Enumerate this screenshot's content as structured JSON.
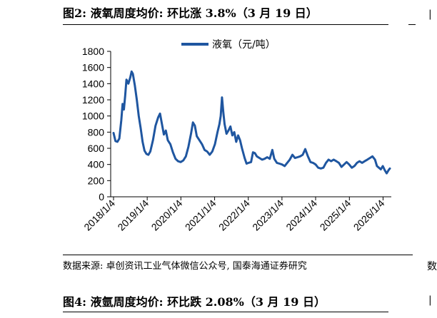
{
  "figure_top": {
    "title": "图2:  液氧周度均价:  环比涨 3.8%（3 月 19 日）"
  },
  "source_note": "数据来源:  卓创资讯工业气体微信公众号,  国泰海通证券研究",
  "figure_bottom": {
    "title": "图4:  液氩周度均价:  环比跌 2.08%（3 月 19 日）"
  },
  "right_edge_marks": {
    "upper": "|",
    "middle": "数",
    "lower": "|"
  },
  "colors": {
    "series": "#1f56a0",
    "axis": "#000000"
  },
  "chart_data": {
    "type": "line",
    "title": "",
    "xlabel": "",
    "ylabel": "",
    "ylim": [
      0,
      1800
    ],
    "yticks": [
      0,
      200,
      400,
      600,
      800,
      1000,
      1200,
      1400,
      1600,
      1800
    ],
    "x_ticks": [
      "2018/1/4",
      "2019/1/4",
      "2020/1/4",
      "2021/1/4",
      "2022/1/4",
      "2023/1/4",
      "2024/1/4",
      "2025/1/4",
      "2026/1/4"
    ],
    "legend": {
      "position": "top-center"
    },
    "grid": false,
    "series": [
      {
        "name": "液氧（元/吨）",
        "points": [
          [
            "2018/1/4",
            790
          ],
          [
            "2018/1/25",
            690
          ],
          [
            "2018/2/15",
            680
          ],
          [
            "2018/3/8",
            720
          ],
          [
            "2018/3/29",
            950
          ],
          [
            "2018/4/12",
            1150
          ],
          [
            "2018/4/26",
            1080
          ],
          [
            "2018/5/10",
            1250
          ],
          [
            "2018/5/24",
            1450
          ],
          [
            "2018/6/14",
            1400
          ],
          [
            "2018/7/5",
            1480
          ],
          [
            "2018/7/19",
            1550
          ],
          [
            "2018/8/2",
            1520
          ],
          [
            "2018/8/23",
            1380
          ],
          [
            "2018/9/13",
            1200
          ],
          [
            "2018/10/4",
            1000
          ],
          [
            "2018/10/25",
            850
          ],
          [
            "2018/11/15",
            680
          ],
          [
            "2018/12/6",
            570
          ],
          [
            "2018/12/27",
            530
          ],
          [
            "2019/1/17",
            520
          ],
          [
            "2019/2/7",
            560
          ],
          [
            "2019/3/7",
            700
          ],
          [
            "2019/4/4",
            880
          ],
          [
            "2019/5/2",
            980
          ],
          [
            "2019/5/23",
            1030
          ],
          [
            "2019/6/13",
            900
          ],
          [
            "2019/7/4",
            770
          ],
          [
            "2019/7/25",
            820
          ],
          [
            "2019/8/15",
            700
          ],
          [
            "2019/9/12",
            650
          ],
          [
            "2019/10/10",
            550
          ],
          [
            "2019/11/7",
            470
          ],
          [
            "2019/12/5",
            440
          ],
          [
            "2020/1/2",
            430
          ],
          [
            "2020/1/30",
            450
          ],
          [
            "2020/2/27",
            500
          ],
          [
            "2020/3/26",
            620
          ],
          [
            "2020/4/23",
            780
          ],
          [
            "2020/5/14",
            920
          ],
          [
            "2020/6/4",
            880
          ],
          [
            "2020/6/25",
            750
          ],
          [
            "2020/7/23",
            700
          ],
          [
            "2020/8/20",
            650
          ],
          [
            "2020/9/17",
            580
          ],
          [
            "2020/10/15",
            560
          ],
          [
            "2020/11/12",
            520
          ],
          [
            "2020/12/10",
            560
          ],
          [
            "2021/1/7",
            650
          ],
          [
            "2021/2/4",
            800
          ],
          [
            "2021/2/25",
            900
          ],
          [
            "2021/3/11",
            1000
          ],
          [
            "2021/3/25",
            1230
          ],
          [
            "2021/4/8",
            1050
          ],
          [
            "2021/4/22",
            900
          ],
          [
            "2021/5/13",
            780
          ],
          [
            "2021/6/3",
            820
          ],
          [
            "2021/6/24",
            870
          ],
          [
            "2021/7/15",
            760
          ],
          [
            "2021/8/5",
            800
          ],
          [
            "2021/8/26",
            680
          ],
          [
            "2021/9/16",
            760
          ],
          [
            "2021/10/7",
            700
          ],
          [
            "2021/10/28",
            600
          ],
          [
            "2021/11/25",
            480
          ],
          [
            "2021/12/16",
            410
          ],
          [
            "2022/1/6",
            420
          ],
          [
            "2022/2/3",
            430
          ],
          [
            "2022/2/24",
            550
          ],
          [
            "2022/3/17",
            540
          ],
          [
            "2022/4/7",
            500
          ],
          [
            "2022/5/5",
            480
          ],
          [
            "2022/6/2",
            460
          ],
          [
            "2022/6/30",
            470
          ],
          [
            "2022/7/28",
            490
          ],
          [
            "2022/8/25",
            470
          ],
          [
            "2022/9/22",
            580
          ],
          [
            "2022/10/13",
            470
          ],
          [
            "2022/11/10",
            420
          ],
          [
            "2022/12/8",
            410
          ],
          [
            "2023/1/5",
            400
          ],
          [
            "2023/2/2",
            380
          ],
          [
            "2023/3/2",
            420
          ],
          [
            "2023/3/30",
            460
          ],
          [
            "2023/4/27",
            520
          ],
          [
            "2023/5/25",
            480
          ],
          [
            "2023/6/22",
            490
          ],
          [
            "2023/7/20",
            500
          ],
          [
            "2023/8/17",
            520
          ],
          [
            "2023/9/14",
            590
          ],
          [
            "2023/10/12",
            500
          ],
          [
            "2023/11/9",
            430
          ],
          [
            "2023/12/7",
            420
          ],
          [
            "2024/1/4",
            400
          ],
          [
            "2024/2/1",
            360
          ],
          [
            "2024/2/29",
            350
          ],
          [
            "2024/3/28",
            360
          ],
          [
            "2024/4/25",
            420
          ],
          [
            "2024/5/23",
            460
          ],
          [
            "2024/6/20",
            440
          ],
          [
            "2024/7/18",
            460
          ],
          [
            "2024/8/15",
            440
          ],
          [
            "2024/9/12",
            420
          ],
          [
            "2024/10/10",
            370
          ],
          [
            "2024/11/7",
            400
          ],
          [
            "2024/12/5",
            430
          ],
          [
            "2025/1/2",
            400
          ],
          [
            "2025/1/30",
            360
          ],
          [
            "2025/2/27",
            380
          ],
          [
            "2025/3/27",
            420
          ],
          [
            "2025/4/24",
            440
          ],
          [
            "2025/5/22",
            420
          ],
          [
            "2025/6/19",
            440
          ],
          [
            "2025/7/17",
            460
          ],
          [
            "2025/8/14",
            480
          ],
          [
            "2025/9/11",
            500
          ],
          [
            "2025/10/9",
            460
          ],
          [
            "2025/10/30",
            380
          ],
          [
            "2025/11/20",
            360
          ],
          [
            "2025/12/11",
            340
          ],
          [
            "2026/1/1",
            380
          ],
          [
            "2026/1/22",
            330
          ],
          [
            "2026/2/12",
            290
          ],
          [
            "2026/3/5",
            330
          ],
          [
            "2026/3/19",
            350
          ]
        ]
      }
    ]
  }
}
